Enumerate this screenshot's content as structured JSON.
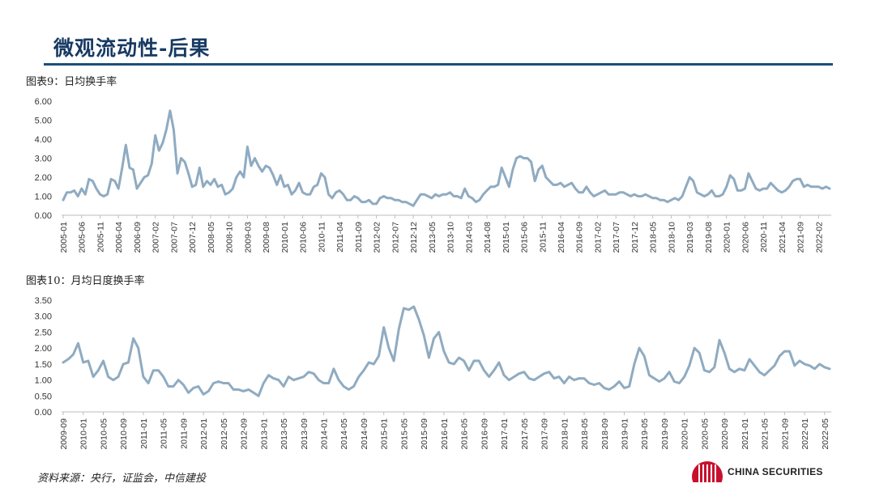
{
  "header": {
    "title": "微观流动性-后果"
  },
  "source": "资料来源：央行，证监会，中信建投",
  "logo": {
    "text": "CHINA SECURITIES"
  },
  "colors": {
    "line": "#8fabc1",
    "title": "#173a63",
    "rule": "#1d4d7a",
    "logo": "#c8102e"
  },
  "chart_data": [
    {
      "type": "line",
      "title": "图表9：日均换手率",
      "ylim": [
        0,
        6
      ],
      "yticks": [
        "0.00",
        "1.00",
        "2.00",
        "3.00",
        "4.00",
        "5.00",
        "6.00"
      ],
      "x_start": "2005-01",
      "x_interval_months": 1,
      "xticks": [
        "2005-01",
        "2005-06",
        "2005-11",
        "2006-04",
        "2006-09",
        "2007-02",
        "2007-07",
        "2007-12",
        "2008-05",
        "2008-10",
        "2009-03",
        "2009-08",
        "2010-01",
        "2010-06",
        "2010-11",
        "2011-04",
        "2011-09",
        "2012-02",
        "2012-07",
        "2012-12",
        "2013-05",
        "2013-10",
        "2014-03",
        "2014-08",
        "2015-01",
        "2015-06",
        "2015-11",
        "2016-04",
        "2016-09",
        "2017-02",
        "2017-07",
        "2017-12",
        "2018-05",
        "2018-10",
        "2019-03",
        "2019-08",
        "2020-01",
        "2020-06",
        "2020-11",
        "2021-04",
        "2021-09",
        "2022-02"
      ],
      "values": [
        0.8,
        1.2,
        1.2,
        1.3,
        1.0,
        1.4,
        1.1,
        1.9,
        1.8,
        1.4,
        1.1,
        1.0,
        1.1,
        1.9,
        1.8,
        1.4,
        2.5,
        3.7,
        2.5,
        2.4,
        1.4,
        1.7,
        2.0,
        2.1,
        2.7,
        4.2,
        3.4,
        3.8,
        4.5,
        5.5,
        4.5,
        2.2,
        3.0,
        2.8,
        2.2,
        1.5,
        1.6,
        2.5,
        1.5,
        1.8,
        1.6,
        1.9,
        1.5,
        1.6,
        1.1,
        1.2,
        1.4,
        2.0,
        2.3,
        2.0,
        3.6,
        2.6,
        3.0,
        2.6,
        2.3,
        2.6,
        2.5,
        2.1,
        1.6,
        2.1,
        1.5,
        1.6,
        1.1,
        1.3,
        1.7,
        1.2,
        1.1,
        1.1,
        1.5,
        1.6,
        2.2,
        2.0,
        1.1,
        0.9,
        1.2,
        1.3,
        1.1,
        0.8,
        0.8,
        1.0,
        0.9,
        0.7,
        0.7,
        0.8,
        0.6,
        0.6,
        0.9,
        1.0,
        0.9,
        0.9,
        0.8,
        0.8,
        0.7,
        0.7,
        0.6,
        0.5,
        0.8,
        1.1,
        1.1,
        1.0,
        0.9,
        1.1,
        1.0,
        1.1,
        1.1,
        1.2,
        1.0,
        1.0,
        0.9,
        1.4,
        1.0,
        0.9,
        0.7,
        0.8,
        1.1,
        1.3,
        1.5,
        1.5,
        1.6,
        2.5,
        2.0,
        1.5,
        2.4,
        3.0,
        3.1,
        3.0,
        3.0,
        2.8,
        1.8,
        2.4,
        2.6,
        2.0,
        1.8,
        1.6,
        1.6,
        1.7,
        1.5,
        1.6,
        1.7,
        1.4,
        1.2,
        1.2,
        1.5,
        1.2,
        1.0,
        1.1,
        1.2,
        1.3,
        1.1,
        1.1,
        1.1,
        1.2,
        1.2,
        1.1,
        1.0,
        1.1,
        1.0,
        1.0,
        1.1,
        1.0,
        0.9,
        0.9,
        0.8,
        0.8,
        0.7,
        0.8,
        0.9,
        0.8,
        1.0,
        1.5,
        2.0,
        1.8,
        1.2,
        1.1,
        1.0,
        1.1,
        1.3,
        1.0,
        1.0,
        1.1,
        1.5,
        2.1,
        1.9,
        1.3,
        1.3,
        1.4,
        2.2,
        1.8,
        1.4,
        1.3,
        1.4,
        1.4,
        1.7,
        1.5,
        1.3,
        1.2,
        1.3,
        1.5,
        1.8,
        1.9,
        1.9,
        1.5,
        1.6,
        1.5,
        1.5,
        1.5,
        1.4,
        1.5,
        1.4
      ]
    },
    {
      "type": "line",
      "title": "图表10：月均日度换手率",
      "ylim": [
        0,
        3.5
      ],
      "yticks": [
        "0.00",
        "0.50",
        "1.00",
        "1.50",
        "2.00",
        "2.50",
        "3.00",
        "3.50"
      ],
      "x_start": "2009-09",
      "x_interval_months": 1,
      "xticks": [
        "2009-09",
        "2010-01",
        "2010-05",
        "2010-09",
        "2011-01",
        "2011-05",
        "2011-09",
        "2012-01",
        "2012-05",
        "2012-09",
        "2013-01",
        "2013-05",
        "2013-09",
        "2014-01",
        "2014-05",
        "2014-09",
        "2015-01",
        "2015-05",
        "2015-09",
        "2016-01",
        "2016-05",
        "2016-09",
        "2017-01",
        "2017-05",
        "2017-09",
        "2018-01",
        "2018-05",
        "2018-09",
        "2019-01",
        "2019-05",
        "2019-09",
        "2020-01",
        "2020-05",
        "2020-09",
        "2021-01",
        "2021-05",
        "2021-09",
        "2022-01",
        "2022-05"
      ],
      "values": [
        1.55,
        1.65,
        1.8,
        2.15,
        1.55,
        1.6,
        1.1,
        1.3,
        1.6,
        1.1,
        1.0,
        1.1,
        1.5,
        1.55,
        2.3,
        2.0,
        1.1,
        0.9,
        1.3,
        1.3,
        1.1,
        0.8,
        0.8,
        1.0,
        0.85,
        0.6,
        0.75,
        0.8,
        0.55,
        0.65,
        0.9,
        0.95,
        0.9,
        0.9,
        0.7,
        0.7,
        0.65,
        0.7,
        0.6,
        0.5,
        0.9,
        1.15,
        1.05,
        1.0,
        0.8,
        1.1,
        1.0,
        1.05,
        1.1,
        1.25,
        1.2,
        1.0,
        0.9,
        0.9,
        1.35,
        1.0,
        0.8,
        0.7,
        0.8,
        1.1,
        1.3,
        1.55,
        1.5,
        1.75,
        2.65,
        2.0,
        1.6,
        2.6,
        3.25,
        3.2,
        3.3,
        2.9,
        2.4,
        1.7,
        2.3,
        2.5,
        1.9,
        1.55,
        1.5,
        1.7,
        1.6,
        1.3,
        1.6,
        1.6,
        1.3,
        1.1,
        1.3,
        1.55,
        1.15,
        1.0,
        1.1,
        1.2,
        1.25,
        1.05,
        1.0,
        1.1,
        1.2,
        1.25,
        1.05,
        1.1,
        0.9,
        1.1,
        1.0,
        1.05,
        1.05,
        0.9,
        0.85,
        0.9,
        0.75,
        0.7,
        0.8,
        0.95,
        0.75,
        0.8,
        1.5,
        2.0,
        1.75,
        1.15,
        1.05,
        0.95,
        1.05,
        1.25,
        0.95,
        0.9,
        1.1,
        1.45,
        2.0,
        1.85,
        1.3,
        1.25,
        1.4,
        2.25,
        1.85,
        1.35,
        1.25,
        1.35,
        1.3,
        1.65,
        1.45,
        1.25,
        1.15,
        1.3,
        1.45,
        1.75,
        1.9,
        1.9,
        1.45,
        1.6,
        1.5,
        1.45,
        1.35,
        1.5,
        1.4,
        1.35
      ]
    }
  ]
}
